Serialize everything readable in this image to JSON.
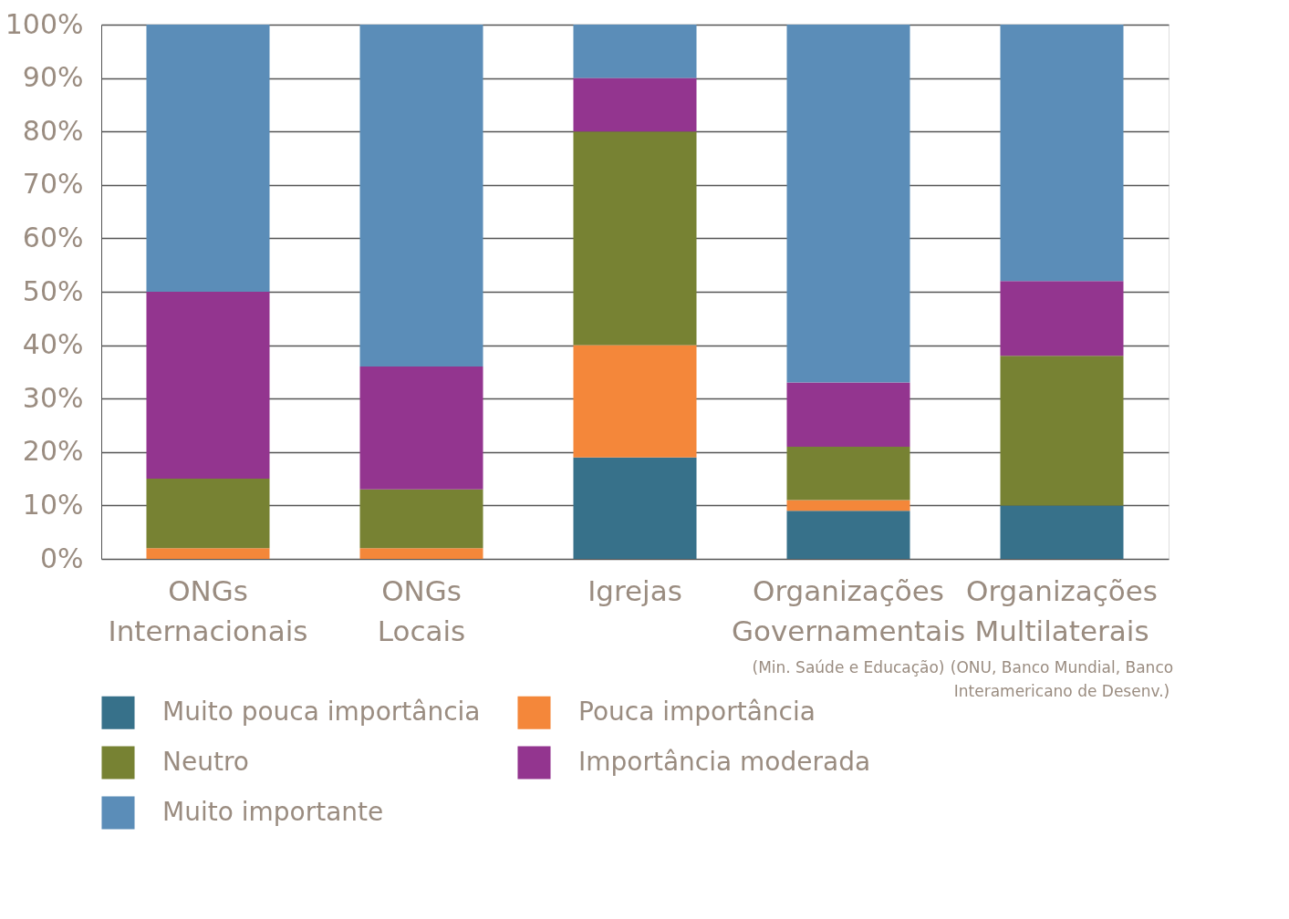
{
  "chart_data": {
    "type": "bar",
    "stacked": true,
    "categories": [
      "ONGs Internacionais",
      "ONGs Locais",
      "Igrejas",
      "Organizações Governamentais (Min. Saúde e Educação)",
      "Organizações Multilaterais (ONU, Banco Mundial, Banco Interamericano de Desenv.)"
    ],
    "series": [
      {
        "name": "Muito pouca importância",
        "color": "#37718a",
        "values": [
          0,
          0,
          19,
          9,
          10
        ]
      },
      {
        "name": "Pouca importância",
        "color": "#f4873a",
        "values": [
          2,
          2,
          21,
          2,
          0
        ]
      },
      {
        "name": "Neutro",
        "color": "#778233",
        "values": [
          13,
          11,
          40,
          10,
          28
        ]
      },
      {
        "name": "Importância moderada",
        "color": "#93358f",
        "values": [
          35,
          23,
          10,
          12,
          14
        ]
      },
      {
        "name": "Muito importante",
        "color": "#5b8db8",
        "values": [
          50,
          64,
          10,
          67,
          48
        ]
      }
    ],
    "ylim": [
      0,
      100
    ],
    "yticks": [
      {
        "value": 0,
        "label": "0%"
      },
      {
        "value": 10,
        "label": "10%"
      },
      {
        "value": 20,
        "label": "20%"
      },
      {
        "value": 30,
        "label": "30%"
      },
      {
        "value": 40,
        "label": "40%"
      },
      {
        "value": 50,
        "label": "50%"
      },
      {
        "value": 60,
        "label": "60%"
      },
      {
        "value": 70,
        "label": "70%"
      },
      {
        "value": 80,
        "label": "80%"
      },
      {
        "value": 90,
        "label": "90%"
      },
      {
        "value": 100,
        "label": "100%"
      }
    ],
    "grid": "y",
    "legend": "bottom left"
  }
}
